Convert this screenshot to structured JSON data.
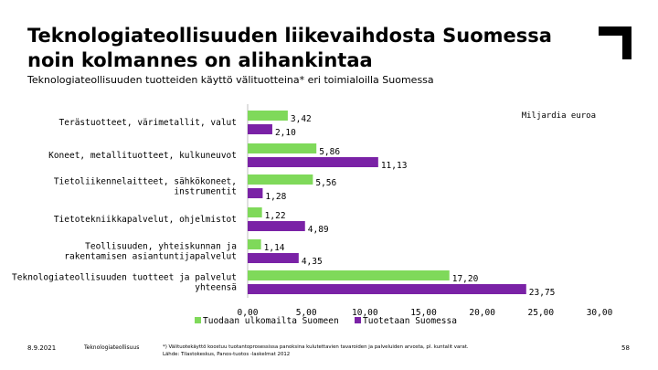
{
  "header": {
    "title_line1": "Teknologiateollisuuden liikevaihdosta Suomessa",
    "title_line2": "noin kolmannes on alihankintaa",
    "subtitle": "Teknologiateollisuuden tuotteiden käyttö välituotteina* eri toimialoilla Suomessa"
  },
  "chart_data": {
    "type": "bar",
    "orientation": "horizontal",
    "unit_label": "Miljardia euroa",
    "categories": [
      [
        "Terästuotteet, värimetallit, valut"
      ],
      [
        "Koneet, metallituotteet, kulkuneuvot"
      ],
      [
        "Tietoliikennelaitteet, sähkökoneet,",
        "instrumentit"
      ],
      [
        "Tietotekniikkapalvelut, ohjelmistot"
      ],
      [
        "Teollisuuden, yhteiskunnan ja",
        "rakentamisen asiantuntijapalvelut"
      ],
      [
        "Teknologiateollisuuden tuotteet ja palvelut",
        "yhteensä"
      ]
    ],
    "series": [
      {
        "name": "Tuodaan ulkomailta Suomeen",
        "color": "#7fd95a",
        "values": [
          3.42,
          5.86,
          5.56,
          1.22,
          1.14,
          17.2
        ],
        "labels": [
          "3,42",
          "5,86",
          "5,56",
          "1,22",
          "1,14",
          "17,20"
        ]
      },
      {
        "name": "Tuotetaan Suomessa",
        "color": "#7a22a6",
        "values": [
          2.1,
          11.13,
          1.28,
          4.89,
          4.35,
          23.75
        ],
        "labels": [
          "2,10",
          "11,13",
          "1,28",
          "4,89",
          "4,35",
          "23,75"
        ]
      }
    ],
    "xlim": [
      0,
      30
    ],
    "xticks": [
      0,
      5,
      10,
      15,
      20,
      25,
      30
    ],
    "xtick_labels": [
      "0,00",
      "5,00",
      "10,00",
      "15,00",
      "20,00",
      "25,00",
      "30,00"
    ],
    "legend_position": "bottom"
  },
  "footer": {
    "date": "8.9.2021",
    "org": "Teknologiateollisuus",
    "note_line1": "*) Välituotekäyttö koostuu tuotantoprosessissa panoksina kulutettavien tavaroiden ja palveluiden arvosta, pl. kuntalit varat.",
    "note_line2": "Lähde: Tilastokeskus, Panos-tuotos -laskelmat 2012",
    "page": "58"
  },
  "colors": {
    "brand": "#000000",
    "import": "#7fd95a",
    "domestic": "#7a22a6"
  }
}
